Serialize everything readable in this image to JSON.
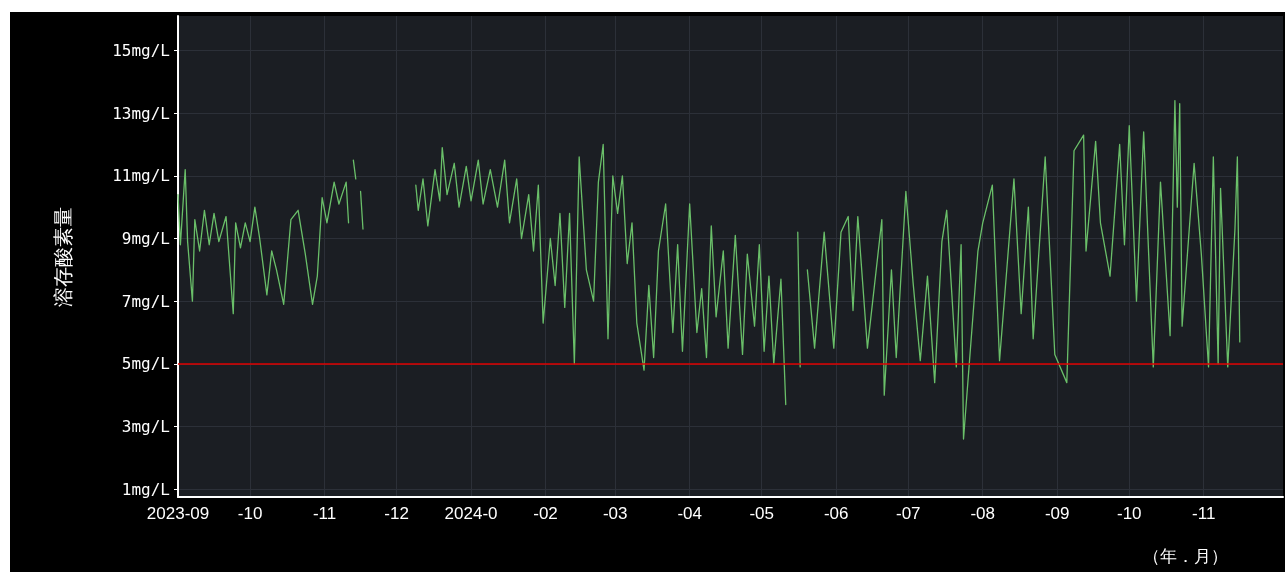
{
  "chart_data": {
    "type": "line",
    "ylabel": "溶存酸素量",
    "xlabel": "（年．月）",
    "x": [
      "2023-09-01",
      "2023-09-02",
      "2023-09-04",
      "2023-09-05",
      "2023-09-07",
      "2023-09-08",
      "2023-09-10",
      "2023-09-12",
      "2023-09-14",
      "2023-09-16",
      "2023-09-18",
      "2023-09-21",
      "2023-09-24",
      "2023-09-25",
      "2023-09-27",
      "2023-09-29",
      "2023-10-01",
      "2023-10-03",
      "2023-10-05",
      "2023-10-08",
      "2023-10-10",
      "2023-10-12",
      "2023-10-15",
      "2023-10-18",
      "2023-10-21",
      "2023-10-24",
      "2023-10-27",
      "2023-10-29",
      "2023-10-31",
      "2023-11-02",
      "2023-11-05",
      "2023-11-07",
      "2023-11-10",
      "2023-11-11",
      "2023-11-12",
      "2023-11-13",
      "2023-11-14",
      "2023-11-15",
      "2023-11-16",
      "2023-11-17",
      "2023-11-18",
      "2023-12-09",
      "2023-12-10",
      "2023-12-12",
      "2023-12-14",
      "2023-12-17",
      "2023-12-19",
      "2023-12-20",
      "2023-12-22",
      "2023-12-25",
      "2023-12-27",
      "2023-12-30",
      "2024-01-01",
      "2024-01-04",
      "2024-01-06",
      "2024-01-09",
      "2024-01-12",
      "2024-01-15",
      "2024-01-17",
      "2024-01-20",
      "2024-01-22",
      "2024-01-25",
      "2024-01-27",
      "2024-01-29",
      "2024-01-31",
      "2024-02-03",
      "2024-02-05",
      "2024-02-07",
      "2024-02-09",
      "2024-02-11",
      "2024-02-13",
      "2024-02-15",
      "2024-02-18",
      "2024-02-21",
      "2024-02-23",
      "2024-02-25",
      "2024-02-27",
      "2024-02-29",
      "2024-03-02",
      "2024-03-04",
      "2024-03-06",
      "2024-03-08",
      "2024-03-10",
      "2024-03-13",
      "2024-03-15",
      "2024-03-17",
      "2024-03-19",
      "2024-03-22",
      "2024-03-25",
      "2024-03-27",
      "2024-03-29",
      "2024-04-01",
      "2024-04-04",
      "2024-04-06",
      "2024-04-08",
      "2024-04-10",
      "2024-04-12",
      "2024-04-15",
      "2024-04-17",
      "2024-04-20",
      "2024-04-23",
      "2024-04-25",
      "2024-04-28",
      "2024-04-30",
      "2024-05-02",
      "2024-05-04",
      "2024-05-06",
      "2024-05-09",
      "2024-05-11",
      "2024-05-12",
      "2024-05-16",
      "2024-05-17",
      "2024-05-18",
      "2024-05-20",
      "2024-05-23",
      "2024-05-27",
      "2024-05-31",
      "2024-06-03",
      "2024-06-06",
      "2024-06-08",
      "2024-06-10",
      "2024-06-14",
      "2024-06-20",
      "2024-06-21",
      "2024-06-24",
      "2024-06-26",
      "2024-06-30",
      "2024-07-03",
      "2024-07-06",
      "2024-07-09",
      "2024-07-12",
      "2024-07-15",
      "2024-07-17",
      "2024-07-21",
      "2024-07-23",
      "2024-07-24",
      "2024-07-28",
      "2024-07-30",
      "2024-08-01",
      "2024-08-05",
      "2024-08-08",
      "2024-08-11",
      "2024-08-14",
      "2024-08-17",
      "2024-08-20",
      "2024-08-22",
      "2024-08-27",
      "2024-08-31",
      "2024-09-05",
      "2024-09-08",
      "2024-09-12",
      "2024-09-13",
      "2024-09-17",
      "2024-09-19",
      "2024-09-23",
      "2024-09-27",
      "2024-09-29",
      "2024-10-01",
      "2024-10-04",
      "2024-10-07",
      "2024-10-11",
      "2024-10-14",
      "2024-10-18",
      "2024-10-20",
      "2024-10-21",
      "2024-10-22",
      "2024-10-23",
      "2024-10-28",
      "2024-10-31",
      "2024-11-03",
      "2024-11-05",
      "2024-11-07",
      "2024-11-08",
      "2024-11-11",
      "2024-11-14",
      "2024-11-15",
      "2024-11-16"
    ],
    "series": [
      {
        "color": "#6abf69",
        "values": [
          10.4,
          8.8,
          11.2,
          8.9,
          7.0,
          9.6,
          8.6,
          9.9,
          8.8,
          9.8,
          8.9,
          9.7,
          6.6,
          9.5,
          8.7,
          9.5,
          8.9,
          10.0,
          9.0,
          7.2,
          8.6,
          8.0,
          6.9,
          9.6,
          9.9,
          8.5,
          6.9,
          7.8,
          10.3,
          9.5,
          10.8,
          10.1,
          10.8,
          9.5,
          null,
          11.5,
          10.9,
          null,
          10.5,
          9.3,
          null,
          10.7,
          9.9,
          10.9,
          9.4,
          11.2,
          10.2,
          11.9,
          10.4,
          11.4,
          10.0,
          11.3,
          10.2,
          11.5,
          10.1,
          11.2,
          10.0,
          11.5,
          9.5,
          10.9,
          9.0,
          10.4,
          8.6,
          10.7,
          6.3,
          9.0,
          7.5,
          9.8,
          6.8,
          9.8,
          5.0,
          11.6,
          8.0,
          7.0,
          10.8,
          12.0,
          5.8,
          11.0,
          9.8,
          11.0,
          8.2,
          9.5,
          6.3,
          4.8,
          7.5,
          5.2,
          8.6,
          10.1,
          6.0,
          8.8,
          5.4,
          10.1,
          6.0,
          7.4,
          5.2,
          9.4,
          6.5,
          8.6,
          5.5,
          9.1,
          5.3,
          8.5,
          6.2,
          8.8,
          5.4,
          7.8,
          5.0,
          7.7,
          3.7,
          null,
          9.2,
          4.9,
          null,
          8.0,
          5.5,
          9.2,
          5.5,
          9.2,
          9.7,
          6.7,
          9.7,
          5.5,
          9.6,
          4.0,
          8.0,
          5.2,
          10.5,
          7.6,
          5.1,
          7.8,
          4.4,
          8.9,
          9.9,
          4.9,
          8.8,
          2.6,
          6.6,
          8.6,
          9.5,
          10.7,
          5.1,
          8.0,
          10.9,
          6.6,
          10.0,
          5.8,
          11.6,
          5.3,
          4.4,
          11.8,
          12.3,
          8.6,
          12.1,
          9.5,
          7.8,
          12.0,
          8.8,
          12.6,
          7.0,
          12.4,
          4.9,
          10.8,
          5.9,
          13.4,
          10.0,
          13.3,
          6.2,
          11.4,
          8.5,
          4.9,
          11.6,
          5.0,
          10.6,
          4.9,
          9.3,
          11.6,
          5.7
        ]
      }
    ],
    "xlim": [
      "2023-09-01",
      "2024-12-04"
    ],
    "xticks": [
      {
        "value": "2023-09-01",
        "label": "2023-09"
      },
      {
        "value": "2023-10-01",
        "label": "-10"
      },
      {
        "value": "2023-11-01",
        "label": "-11"
      },
      {
        "value": "2023-12-01",
        "label": "-12"
      },
      {
        "value": "2024-01-01",
        "label": "2024-0"
      },
      {
        "value": "2024-02-01",
        "label": "-02"
      },
      {
        "value": "2024-03-01",
        "label": "-03"
      },
      {
        "value": "2024-04-01",
        "label": "-04"
      },
      {
        "value": "2024-05-01",
        "label": "-05"
      },
      {
        "value": "2024-06-01",
        "label": "-06"
      },
      {
        "value": "2024-07-01",
        "label": "-07"
      },
      {
        "value": "2024-08-01",
        "label": "-08"
      },
      {
        "value": "2024-09-01",
        "label": "-09"
      },
      {
        "value": "2024-10-01",
        "label": "-10"
      },
      {
        "value": "2024-11-01",
        "label": "-11"
      }
    ],
    "ylim": [
      0.75,
      16.1
    ],
    "yticks": [
      {
        "value": 1,
        "label": "1mg/L"
      },
      {
        "value": 3,
        "label": "3mg/L"
      },
      {
        "value": 5,
        "label": "5mg/L"
      },
      {
        "value": 7,
        "label": "7mg/L"
      },
      {
        "value": 9,
        "label": "9mg/L"
      },
      {
        "value": 11,
        "label": "11mg/L"
      },
      {
        "value": 13,
        "label": "13mg/L"
      },
      {
        "value": 15,
        "label": "15mg/L"
      }
    ],
    "ref_lines": [
      {
        "axis": "y",
        "value": 5,
        "color": "#e00000"
      }
    ],
    "grid": true,
    "marker": "none",
    "line_style": "solid"
  }
}
